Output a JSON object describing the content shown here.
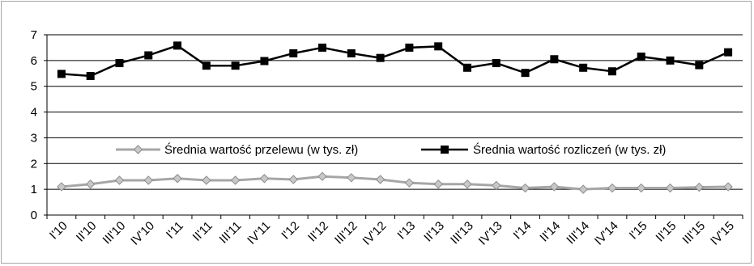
{
  "chart_data": {
    "type": "line",
    "categories": [
      "I'10",
      "II'10",
      "III'10",
      "IV'10",
      "I'11",
      "II'11",
      "III'11",
      "IV'11",
      "I'12",
      "II'12",
      "III'12",
      "IV'12",
      "I'13",
      "II'13",
      "III'13",
      "IV'13",
      "I'14",
      "II'14",
      "III'14",
      "IV'14",
      "I'15",
      "II'15",
      "III'15",
      "IV'15"
    ],
    "ylim": [
      0,
      7
    ],
    "yticks": [
      "0",
      "1",
      "2",
      "3",
      "4",
      "5",
      "6",
      "7"
    ],
    "grid": true,
    "legend_position": "center",
    "series": [
      {
        "name": "Średnia wartość przelewu (w tys. zł)",
        "color": "#a6a6a6",
        "marker": "diamond",
        "values": [
          1.1,
          1.2,
          1.35,
          1.35,
          1.42,
          1.35,
          1.35,
          1.42,
          1.38,
          1.5,
          1.45,
          1.38,
          1.25,
          1.2,
          1.2,
          1.15,
          1.05,
          1.1,
          1.0,
          1.05,
          1.05,
          1.05,
          1.08,
          1.1
        ]
      },
      {
        "name": "Średnia wartość rozliczeń  (w tys. zł)",
        "color": "#000000",
        "marker": "square",
        "values": [
          5.48,
          5.4,
          5.9,
          6.2,
          6.58,
          5.8,
          5.8,
          5.98,
          6.28,
          6.5,
          6.28,
          6.1,
          6.5,
          6.55,
          5.72,
          5.9,
          5.52,
          6.05,
          5.72,
          5.58,
          6.15,
          6.0,
          5.82,
          6.32
        ]
      }
    ]
  }
}
